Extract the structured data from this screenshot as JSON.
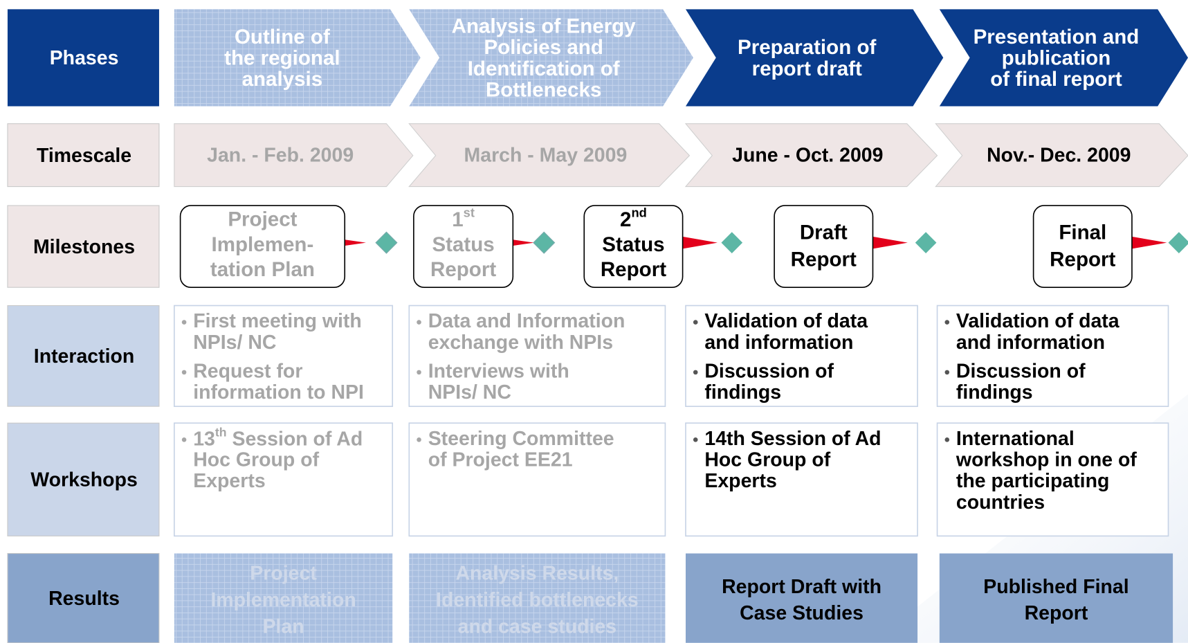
{
  "rows": [
    "Phases",
    "Timescale",
    "Milestones",
    "Interaction",
    "Workshops",
    "Results"
  ],
  "phases": [
    [
      "Outline of",
      "the regional",
      "analysis"
    ],
    [
      "Analysis of Energy",
      "Policies and",
      "Identification of",
      "Bottlenecks"
    ],
    [
      "Preparation of",
      "report draft"
    ],
    [
      "Presentation and",
      "publication",
      "of final report"
    ]
  ],
  "timescale": [
    "Jan. - Feb. 2009",
    "March - May 2009",
    "June - Oct. 2009",
    "Nov.- Dec. 2009"
  ],
  "milestones": [
    {
      "lines": [
        "Project",
        "Implemen-",
        "tation Plan"
      ]
    },
    {
      "lines": [
        {
          "pre": "1",
          "sup": "st"
        },
        "Status",
        "Report"
      ]
    },
    {
      "lines": [
        {
          "pre": "2",
          "sup": "nd"
        },
        "Status",
        "Report"
      ]
    },
    {
      "lines": [
        "Draft",
        "Report"
      ]
    },
    {
      "lines": [
        "Final",
        "Report"
      ]
    }
  ],
  "interaction": [
    [
      [
        "First meeting with",
        "NPIs/ NC"
      ],
      [
        "Request for",
        "information to NPI"
      ]
    ],
    [
      [
        "Data and Information",
        "exchange with NPIs"
      ],
      [
        "Interviews with",
        "NPIs/ NC"
      ]
    ],
    [
      [
        "Validation of data",
        "and information"
      ],
      [
        "Discussion of",
        "findings"
      ]
    ],
    [
      [
        "Validation of data",
        "and information"
      ],
      [
        "Discussion of",
        "findings"
      ]
    ]
  ],
  "workshops": [
    [
      [
        {
          "pre": "13",
          "sup": "th",
          "post": " Session of Ad"
        },
        "Hoc Group of",
        "Experts"
      ]
    ],
    [
      [
        "Steering Committee",
        "of Project EE21"
      ]
    ],
    [
      [
        "14th Session of Ad",
        "Hoc Group of",
        "Experts"
      ]
    ],
    [
      [
        "International",
        "workshop in one of",
        "the participating",
        "countries"
      ]
    ]
  ],
  "results": [
    [
      "Project",
      "Implementation",
      "Plan"
    ],
    [
      "Analysis Results,",
      "Identified bottlenecks",
      "and case studies"
    ],
    [
      "Report Draft with",
      "Case Studies"
    ],
    [
      "Published Final",
      "Report"
    ]
  ]
}
